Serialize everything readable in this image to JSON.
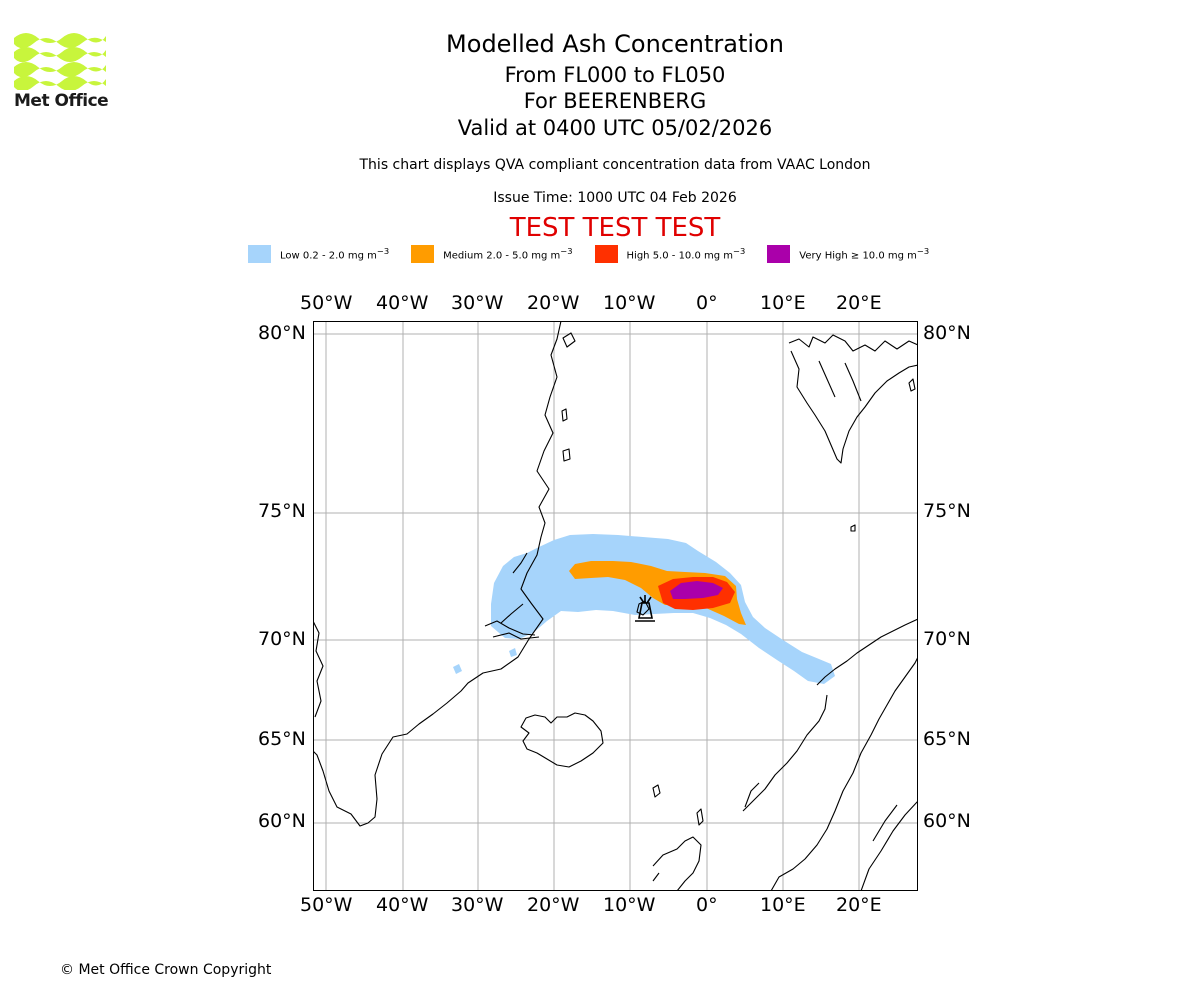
{
  "branding": {
    "name": "Met Office",
    "copyright": "© Met Office Crown Copyright"
  },
  "header": {
    "title": "Modelled Ash Concentration",
    "levels": "From FL000 to FL050",
    "volcano": "For BEERENBERG",
    "valid": "Valid at 0400 UTC 05/02/2026",
    "note": "This chart displays QVA compliant concentration data from VAAC London",
    "issue": "Issue Time: 1000 UTC 04 Feb 2026",
    "test_banner": "TEST TEST TEST"
  },
  "legend": [
    {
      "label_pre": "Low 0.2 - 2.0 mg m",
      "sup": "−3",
      "color": "#a6d4fb"
    },
    {
      "label_pre": "Medium 2.0 - 5.0 mg m",
      "sup": "−3",
      "color": "#ff9c00"
    },
    {
      "label_pre": "High 5.0 - 10.0 mg m",
      "sup": "−3",
      "color": "#ff3000"
    },
    {
      "label_pre": "Very High ≥ 10.0 mg m",
      "sup": "−3",
      "color": "#aa00aa"
    }
  ],
  "axes": {
    "lon_labels": [
      "50°W",
      "40°W",
      "30°W",
      "20°W",
      "10°W",
      "0°",
      "10°E",
      "20°E"
    ],
    "lat_labels": [
      "80°N",
      "75°N",
      "70°N",
      "65°N",
      "60°N"
    ]
  },
  "map_data": {
    "projection": "polar-stereographic",
    "meridians": [
      -50,
      -40,
      -30,
      -20,
      -10,
      0,
      10,
      20
    ],
    "parallels": [
      80,
      75,
      70,
      65,
      60
    ],
    "volcano": {
      "name": "BEERENBERG",
      "lon": -8.2,
      "lat": 71.1,
      "icon": "volcano-icon"
    },
    "colors": {
      "low": "#a6d4fb",
      "medium": "#ff9c00",
      "high": "#ff3000",
      "very_high": "#aa00aa",
      "grid": "#b0b0b0",
      "coast": "#000000"
    }
  }
}
